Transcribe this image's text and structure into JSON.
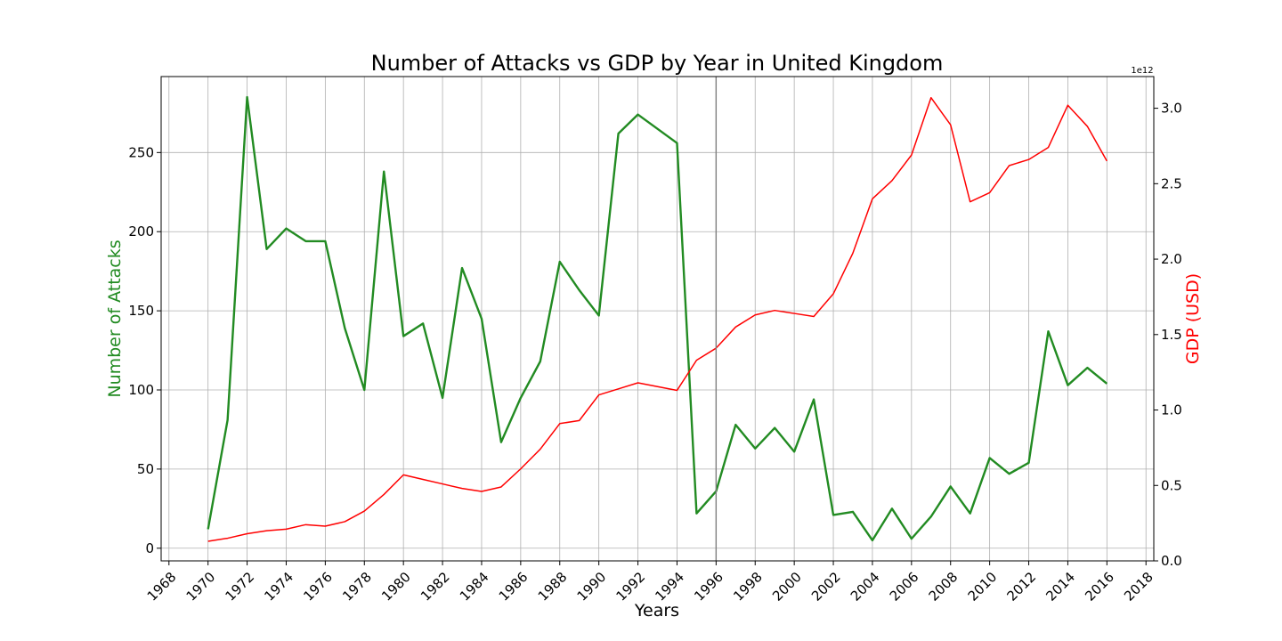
{
  "chart_data": {
    "type": "line",
    "title": "Number of Attacks vs GDP by Year in United Kingdom",
    "xlabel": "Years",
    "ylabel_left": "Number of Attacks",
    "ylabel_right": "GDP (USD)",
    "right_axis_offset_text": "1e12",
    "xlim": [
      1967.6,
      2018.4
    ],
    "ylim_left": [
      -8,
      298
    ],
    "ylim_right": [
      0.0,
      3.21
    ],
    "x_ticks": [
      "1968",
      "1970",
      "1972",
      "1974",
      "1976",
      "1978",
      "1980",
      "1982",
      "1984",
      "1986",
      "1988",
      "1990",
      "1992",
      "1994",
      "1996",
      "1998",
      "2000",
      "2002",
      "2004",
      "2006",
      "2008",
      "2010",
      "2012",
      "2014",
      "2016",
      "2018"
    ],
    "y_ticks_left": [
      "0",
      "50",
      "100",
      "150",
      "200",
      "250"
    ],
    "y_ticks_right": [
      "0.0",
      "0.5",
      "1.0",
      "1.5",
      "2.0",
      "2.5",
      "3.0"
    ],
    "grid": true,
    "vertical_marker_year": 1996,
    "colors": {
      "attacks": "#228b22",
      "gdp": "#ff0000",
      "marker": "#808080",
      "grid": "#b0b0b0"
    },
    "series": [
      {
        "name": "Number of Attacks",
        "axis": "left",
        "x": [
          1970,
          1971,
          1972,
          1973,
          1974,
          1975,
          1976,
          1977,
          1978,
          1979,
          1980,
          1981,
          1982,
          1983,
          1984,
          1985,
          1986,
          1987,
          1988,
          1989,
          1990,
          1991,
          1992,
          1994,
          1995,
          1996,
          1997,
          1998,
          1999,
          2000,
          2001,
          2002,
          2003,
          2004,
          2005,
          2006,
          2007,
          2008,
          2009,
          2010,
          2011,
          2012,
          2013,
          2014,
          2015,
          2016
        ],
        "values": [
          12,
          81,
          285,
          189,
          202,
          194,
          194,
          139,
          100,
          238,
          134,
          142,
          95,
          177,
          145,
          67,
          95,
          118,
          181,
          163,
          147,
          262,
          274,
          256,
          22,
          36,
          78,
          63,
          76,
          61,
          94,
          21,
          23,
          5,
          25,
          6,
          20,
          39,
          22,
          57,
          47,
          54,
          137,
          103,
          114,
          104
        ]
      },
      {
        "name": "GDP (USD)",
        "axis": "right",
        "x": [
          1970,
          1971,
          1972,
          1973,
          1974,
          1975,
          1976,
          1977,
          1978,
          1979,
          1980,
          1981,
          1982,
          1983,
          1984,
          1985,
          1986,
          1987,
          1988,
          1989,
          1990,
          1991,
          1992,
          1994,
          1995,
          1996,
          1997,
          1998,
          1999,
          2000,
          2001,
          2002,
          2003,
          2004,
          2005,
          2006,
          2007,
          2008,
          2009,
          2010,
          2011,
          2012,
          2013,
          2014,
          2015,
          2016
        ],
        "values": [
          0.13,
          0.15,
          0.18,
          0.2,
          0.21,
          0.24,
          0.23,
          0.26,
          0.33,
          0.44,
          0.57,
          0.54,
          0.51,
          0.48,
          0.46,
          0.49,
          0.61,
          0.74,
          0.91,
          0.93,
          1.1,
          1.14,
          1.18,
          1.13,
          1.33,
          1.41,
          1.55,
          1.63,
          1.66,
          1.64,
          1.62,
          1.77,
          2.04,
          2.4,
          2.52,
          2.69,
          3.07,
          2.89,
          2.38,
          2.44,
          2.62,
          2.66,
          2.74,
          3.02,
          2.88,
          2.65
        ]
      }
    ]
  }
}
